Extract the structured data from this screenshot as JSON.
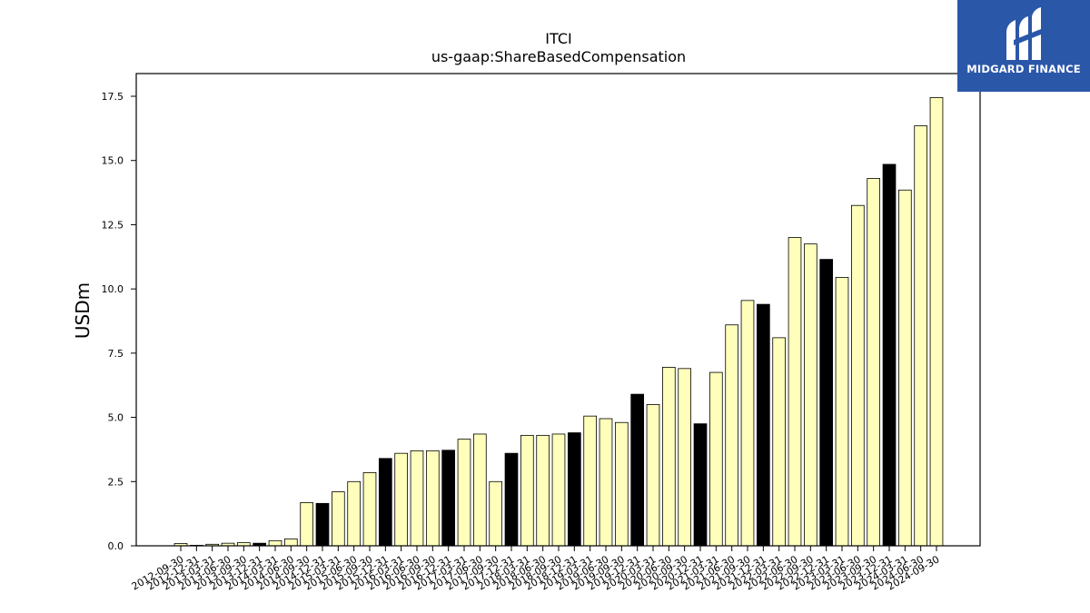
{
  "logo": {
    "text": "MIDGARD FINANCE",
    "background": "#2b57a9",
    "icon": "midgard-logo-icon"
  },
  "chart_data": {
    "type": "bar",
    "title": "ITCI",
    "subtitle": "us-gaap:ShareBasedCompensation",
    "ylabel": "USDm",
    "xlabel": "",
    "ylim": [
      0,
      17.5
    ],
    "yticks": [
      "0.0",
      "2.5",
      "5.0",
      "7.5",
      "10.0",
      "12.5",
      "15.0",
      "17.5"
    ],
    "grid": false,
    "colors": {
      "quarter": "#ffffbb",
      "year_end": "#000000",
      "edge": "#000000"
    },
    "categories": [
      "2012-09-30",
      "2012-12-31",
      "2013-03-31",
      "2013-06-30",
      "2013-09-30",
      "2013-12-31",
      "2014-03-31",
      "2014-06-30",
      "2014-09-30",
      "2014-12-31",
      "2015-03-31",
      "2015-06-30",
      "2015-09-30",
      "2015-12-31",
      "2016-03-31",
      "2016-06-30",
      "2016-09-30",
      "2016-12-31",
      "2017-03-31",
      "2017-06-30",
      "2017-09-30",
      "2017-12-31",
      "2018-03-31",
      "2018-06-30",
      "2018-09-30",
      "2018-12-31",
      "2019-03-31",
      "2019-06-30",
      "2019-09-30",
      "2019-12-31",
      "2020-03-31",
      "2020-06-30",
      "2020-09-30",
      "2020-12-31",
      "2021-03-31",
      "2021-06-30",
      "2021-09-30",
      "2021-12-31",
      "2022-03-31",
      "2022-06-30",
      "2022-09-30",
      "2022-12-31",
      "2023-03-31",
      "2023-06-30",
      "2023-09-30",
      "2023-12-31",
      "2024-03-31",
      "2024-06-30",
      "2024-09-30"
    ],
    "values": [
      0.09,
      0.02,
      0.06,
      0.1,
      0.12,
      0.1,
      0.2,
      0.27,
      1.68,
      1.65,
      2.1,
      2.5,
      2.85,
      3.4,
      3.6,
      3.7,
      3.7,
      3.72,
      4.15,
      4.35,
      2.5,
      3.6,
      4.3,
      4.3,
      4.35,
      4.4,
      5.05,
      4.95,
      4.8,
      5.9,
      5.5,
      6.95,
      6.9,
      4.75,
      6.75,
      8.6,
      9.55,
      9.4,
      8.1,
      12.0,
      11.75,
      11.15,
      10.45,
      13.25,
      14.3,
      14.85,
      13.85,
      16.35,
      17.45
    ],
    "year_end": [
      false,
      true,
      false,
      false,
      false,
      true,
      false,
      false,
      false,
      true,
      false,
      false,
      false,
      true,
      false,
      false,
      false,
      true,
      false,
      false,
      false,
      true,
      false,
      false,
      false,
      true,
      false,
      false,
      false,
      true,
      false,
      false,
      false,
      true,
      false,
      false,
      false,
      true,
      false,
      false,
      false,
      true,
      false,
      false,
      false,
      true,
      false,
      false,
      false
    ]
  }
}
